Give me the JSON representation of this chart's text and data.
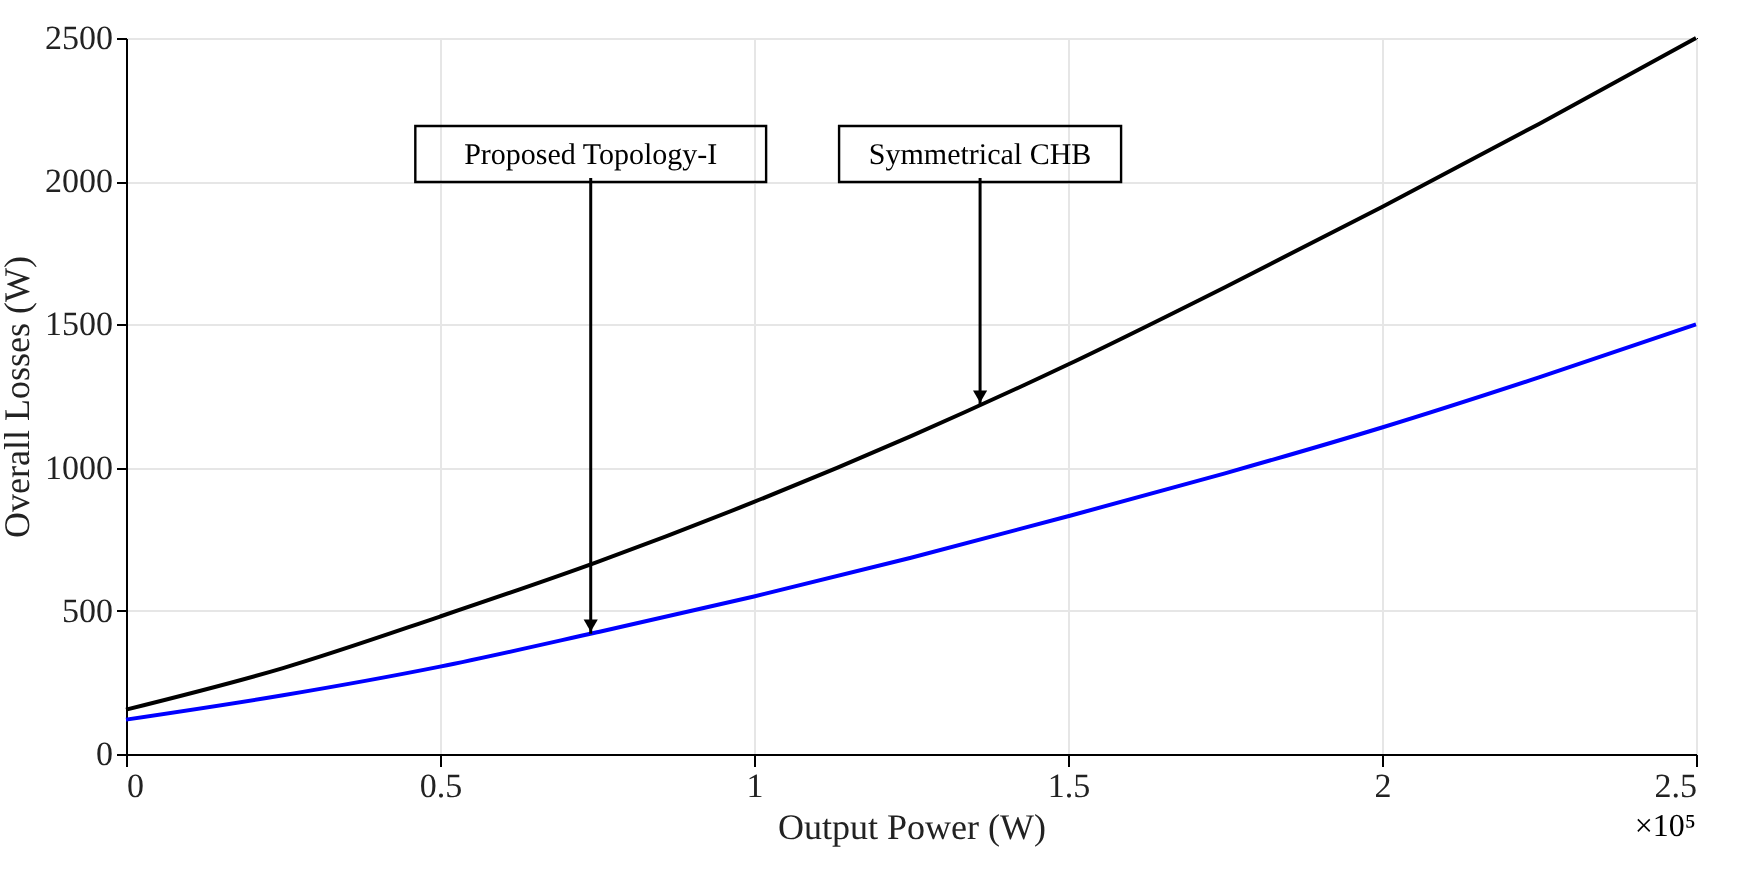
{
  "chart_data": {
    "type": "line",
    "xlabel": "Output Power (W)",
    "ylabel": "Overall Losses (W)",
    "x": [
      0,
      0.25,
      0.5,
      0.75,
      1,
      1.25,
      1.5,
      1.75,
      2,
      2.25,
      2.5
    ],
    "series": [
      {
        "color": "#000000",
        "values": [
          155,
          300,
          480,
          670,
          880,
          1110,
          1360,
          1630,
          1910,
          2200,
          2500
        ]
      },
      {
        "color": "#0000ff",
        "values": [
          120,
          205,
          305,
          425,
          550,
          685,
          830,
          980,
          1140,
          1315,
          1500
        ]
      }
    ],
    "xlim": [
      0,
      2.5
    ],
    "xticks": [
      0,
      0.5,
      1,
      1.5,
      2,
      2.5
    ],
    "ylim": [
      0,
      2500
    ],
    "yticks": [
      0,
      500,
      1000,
      1500,
      2000,
      2500
    ],
    "grid": true,
    "line_style": "solid",
    "annotations": [
      {
        "text": "Proposed Topology-I",
        "x": 0.74,
        "y": 420
      },
      {
        "text": "Symmetrical CHB",
        "x": 1.36,
        "y": 1220
      },
      "×10⁵"
    ]
  }
}
